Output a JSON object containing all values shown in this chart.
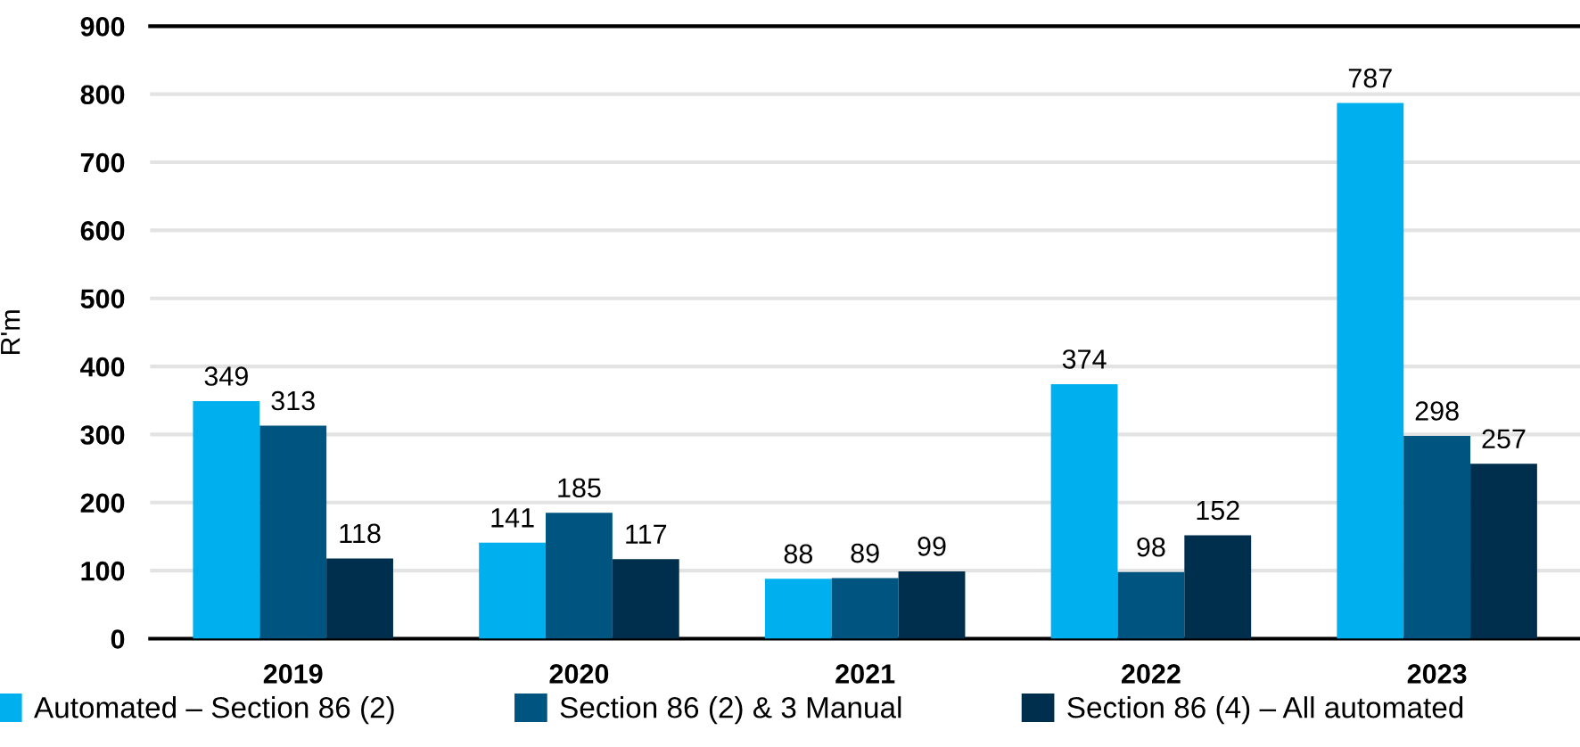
{
  "chart_data": {
    "type": "bar",
    "ylabel": "R'm",
    "categories": [
      "2019",
      "2020",
      "2021",
      "2022",
      "2023"
    ],
    "series": [
      {
        "name": "Automated – Section 86 (2)",
        "color": "#00b0ee",
        "values": [
          349,
          141,
          88,
          374,
          787
        ]
      },
      {
        "name": "Section 86 (2) & 3 Manual",
        "color": "#005580",
        "values": [
          313,
          185,
          89,
          98,
          298
        ]
      },
      {
        "name": "Section 86 (4) – All automated",
        "color": "#002f4e",
        "values": [
          118,
          117,
          99,
          152,
          257
        ]
      }
    ],
    "ylim": [
      0,
      900
    ],
    "yticks": [
      0,
      100,
      200,
      300,
      400,
      500,
      600,
      700,
      800,
      900
    ],
    "grid": "y",
    "legend": "bottom",
    "data_labels": true
  }
}
